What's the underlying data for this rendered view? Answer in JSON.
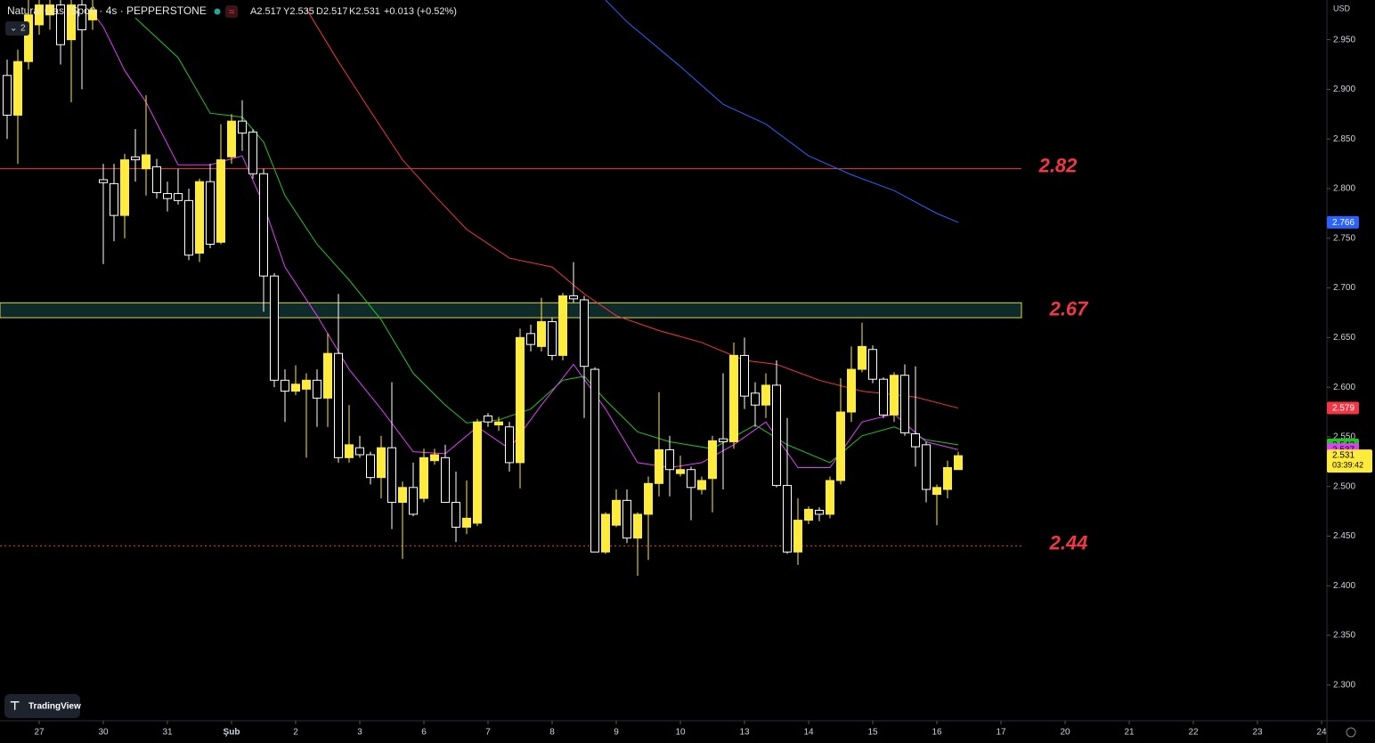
{
  "header": {
    "symbol": "Natural Gas (Spot) · 4s · PEPPERSTONE",
    "open": "A2.517",
    "high": "Y2.535",
    "low": "D2.517",
    "close": "K2.531",
    "change": "+0.013 (+0.52%)",
    "indicators": "2",
    "currency": "USD",
    "countdown": "03:39:42",
    "brand": "TradingView"
  },
  "chart_data": {
    "type": "candlestick",
    "up_color": "#ffeb3b",
    "down_color": "#ffffff",
    "open": [
      2.914,
      2.874,
      2.928,
      2.965,
      2.975,
      2.985,
      2.95,
      2.985,
      2.97,
      2.809,
      2.805,
      2.773,
      2.832,
      2.82,
      2.822,
      2.795,
      2.795,
      2.788,
      2.735,
      2.807,
      2.746,
      2.832,
      2.868,
      2.857,
      2.815,
      2.712,
      2.607,
      2.596,
      2.598,
      2.607,
      2.589,
      2.634,
      2.529,
      2.539,
      2.532,
      2.509,
      2.539,
      2.484,
      2.499,
      2.488,
      2.526,
      2.529,
      2.484,
      2.459,
      2.463,
      2.571,
      2.562,
      2.56,
      2.524,
      2.654,
      2.641,
      2.666,
      2.632,
      2.692,
      2.688,
      2.618,
      2.434,
      2.461,
      2.486,
      2.448,
      2.472,
      2.503,
      2.537,
      2.513,
      2.517,
      2.497,
      2.508,
      2.548,
      2.545,
      2.632,
      2.594,
      2.582,
      2.602,
      2.501,
      2.434,
      2.466,
      2.476,
      2.472,
      2.506,
      2.575,
      2.618,
      2.638,
      2.608,
      2.572,
      2.612,
      2.553,
      2.542,
      2.492,
      2.497,
      2.517
    ],
    "high": [
      2.93,
      2.94,
      2.99,
      2.99,
      2.99,
      2.99,
      2.99,
      2.99,
      2.99,
      2.825,
      2.825,
      2.835,
      2.86,
      2.894,
      2.83,
      2.807,
      2.82,
      2.8,
      2.81,
      2.825,
      2.865,
      2.875,
      2.889,
      2.86,
      2.82,
      2.715,
      2.618,
      2.622,
      2.614,
      2.618,
      2.654,
      2.694,
      2.582,
      2.551,
      2.535,
      2.551,
      2.605,
      2.505,
      2.524,
      2.538,
      2.538,
      2.542,
      2.515,
      2.506,
      2.568,
      2.574,
      2.57,
      2.565,
      2.659,
      2.663,
      2.69,
      2.67,
      2.695,
      2.726,
      2.692,
      2.62,
      2.474,
      2.497,
      2.497,
      2.474,
      2.51,
      2.595,
      2.551,
      2.531,
      2.52,
      2.51,
      2.551,
      2.614,
      2.645,
      2.65,
      2.605,
      2.614,
      2.627,
      2.569,
      2.488,
      2.48,
      2.479,
      2.51,
      2.609,
      2.641,
      2.665,
      2.642,
      2.61,
      2.615,
      2.623,
      2.621,
      2.545,
      2.502,
      2.526,
      2.535
    ],
    "low": [
      2.85,
      2.825,
      2.92,
      2.955,
      2.96,
      2.925,
      2.887,
      2.9,
      2.96,
      2.724,
      2.747,
      2.75,
      2.807,
      2.793,
      2.79,
      2.777,
      2.784,
      2.728,
      2.726,
      2.74,
      2.744,
      2.825,
      2.838,
      2.81,
      2.676,
      2.6,
      2.565,
      2.592,
      2.529,
      2.56,
      2.56,
      2.524,
      2.524,
      2.529,
      2.502,
      2.488,
      2.457,
      2.427,
      2.47,
      2.484,
      2.522,
      2.484,
      2.444,
      2.452,
      2.46,
      2.56,
      2.556,
      2.515,
      2.498,
      2.636,
      2.636,
      2.627,
      2.627,
      2.685,
      2.569,
      2.434,
      2.432,
      2.459,
      2.443,
      2.41,
      2.426,
      2.49,
      2.49,
      2.51,
      2.466,
      2.492,
      2.474,
      2.497,
      2.538,
      2.578,
      2.56,
      2.569,
      2.499,
      2.432,
      2.421,
      2.462,
      2.465,
      2.468,
      2.502,
      2.565,
      2.615,
      2.604,
      2.569,
      2.565,
      2.551,
      2.52,
      2.484,
      2.461,
      2.488,
      2.517
    ],
    "close": [
      2.874,
      2.928,
      2.975,
      2.985,
      2.985,
      2.945,
      2.985,
      2.96,
      2.98,
      2.806,
      2.773,
      2.829,
      2.829,
      2.834,
      2.796,
      2.79,
      2.788,
      2.733,
      2.807,
      2.744,
      2.829,
      2.868,
      2.856,
      2.815,
      2.712,
      2.607,
      2.596,
      2.603,
      2.607,
      2.589,
      2.634,
      2.529,
      2.542,
      2.532,
      2.509,
      2.539,
      2.484,
      2.499,
      2.472,
      2.529,
      2.532,
      2.484,
      2.459,
      2.468,
      2.565,
      2.565,
      2.565,
      2.524,
      2.65,
      2.643,
      2.666,
      2.632,
      2.692,
      2.689,
      2.621,
      2.434,
      2.472,
      2.486,
      2.448,
      2.472,
      2.503,
      2.537,
      2.517,
      2.517,
      2.499,
      2.506,
      2.546,
      2.545,
      2.632,
      2.591,
      2.582,
      2.602,
      2.501,
      2.434,
      2.466,
      2.477,
      2.472,
      2.506,
      2.575,
      2.618,
      2.641,
      2.608,
      2.572,
      2.612,
      2.554,
      2.54,
      2.497,
      2.499,
      2.519,
      2.531
    ],
    "series": [
      {
        "color": "#2962ff",
        "x": [
          56,
          58,
          63,
          67,
          71,
          75,
          79,
          83,
          87,
          89
        ],
        "values": [
          2.99,
          2.968,
          2.923,
          2.885,
          2.865,
          2.833,
          2.814,
          2.798,
          2.775,
          2.766
        ]
      },
      {
        "color": "#f23645",
        "x": [
          28,
          31,
          34,
          37,
          40,
          43,
          47,
          51,
          54,
          57,
          61,
          65,
          69,
          72,
          76,
          80,
          85,
          89
        ],
        "values": [
          2.981,
          2.928,
          2.878,
          2.829,
          2.793,
          2.759,
          2.73,
          2.721,
          2.694,
          2.672,
          2.657,
          2.645,
          2.627,
          2.623,
          2.607,
          2.596,
          2.59,
          2.579
        ]
      },
      {
        "color": "#22c522",
        "x": [
          12,
          16,
          19,
          22,
          24,
          26,
          29,
          32,
          35,
          38,
          41,
          43,
          46,
          49,
          52,
          54,
          56,
          59,
          62,
          66,
          70,
          73,
          77,
          80,
          83,
          86,
          89
        ],
        "values": [
          2.972,
          2.932,
          2.876,
          2.872,
          2.847,
          2.793,
          2.744,
          2.708,
          2.668,
          2.614,
          2.582,
          2.564,
          2.567,
          2.578,
          2.607,
          2.611,
          2.587,
          2.555,
          2.545,
          2.538,
          2.562,
          2.542,
          2.524,
          2.551,
          2.56,
          2.547,
          2.542
        ]
      },
      {
        "color": "#e040fb",
        "x": [
          8,
          9,
          11,
          13,
          16,
          19,
          22,
          24,
          26,
          29,
          32,
          35,
          38,
          41,
          44,
          47,
          50,
          53,
          56,
          59,
          62,
          65,
          68,
          71,
          74,
          77,
          80,
          83,
          86,
          89
        ],
        "values": [
          2.977,
          2.963,
          2.919,
          2.887,
          2.824,
          2.824,
          2.833,
          2.784,
          2.721,
          2.672,
          2.618,
          2.578,
          2.535,
          2.533,
          2.56,
          2.538,
          2.582,
          2.623,
          2.578,
          2.524,
          2.519,
          2.524,
          2.542,
          2.565,
          2.519,
          2.519,
          2.565,
          2.573,
          2.545,
          2.537
        ]
      }
    ],
    "levels": [
      {
        "label": "2.82",
        "value": 2.82,
        "color": "#f23645",
        "style": "solid"
      },
      {
        "label": "2.44",
        "value": 2.44,
        "color": "#f23645",
        "style": "dotted"
      }
    ],
    "zones": [
      {
        "label": "2.67",
        "low": 2.67,
        "high": 2.685,
        "color": "#d8d84a",
        "fill": "#0f2a2a"
      }
    ],
    "label_color": "#f23645",
    "xlim": [
      -0.667,
      123.5
    ],
    "xticks": [
      {
        "value": 3,
        "label": "27"
      },
      {
        "value": 9,
        "label": "30"
      },
      {
        "value": 15,
        "label": "31"
      },
      {
        "value": 21,
        "label": "Şub"
      },
      {
        "value": 27,
        "label": "2"
      },
      {
        "value": 33,
        "label": "3"
      },
      {
        "value": 39,
        "label": "6"
      },
      {
        "value": 45,
        "label": "7"
      },
      {
        "value": 51,
        "label": "8"
      },
      {
        "value": 57,
        "label": "9"
      },
      {
        "value": 63,
        "label": "10"
      },
      {
        "value": 69,
        "label": "13"
      },
      {
        "value": 75,
        "label": "14"
      },
      {
        "value": 81,
        "label": "15"
      },
      {
        "value": 87,
        "label": "16"
      },
      {
        "value": 93,
        "label": "17"
      },
      {
        "value": 99,
        "label": "20"
      },
      {
        "value": 105,
        "label": "21"
      },
      {
        "value": 111,
        "label": "22"
      },
      {
        "value": 117,
        "label": "23"
      },
      {
        "value": 123,
        "label": "24"
      }
    ],
    "ylim": [
      2.264,
      2.99
    ],
    "yticks": [
      {
        "value": 2.3,
        "label": "2.300"
      },
      {
        "value": 2.35,
        "label": "2.350"
      },
      {
        "value": 2.4,
        "label": "2.400"
      },
      {
        "value": 2.45,
        "label": "2.450"
      },
      {
        "value": 2.5,
        "label": "2.500"
      },
      {
        "value": 2.55,
        "label": "2.550"
      },
      {
        "value": 2.6,
        "label": "2.600"
      },
      {
        "value": 2.65,
        "label": "2.650"
      },
      {
        "value": 2.7,
        "label": "2.700"
      },
      {
        "value": 2.75,
        "label": "2.750"
      },
      {
        "value": 2.8,
        "label": "2.800"
      },
      {
        "value": 2.85,
        "label": "2.850"
      },
      {
        "value": 2.9,
        "label": "2.900"
      },
      {
        "value": 2.95,
        "label": "2.950"
      }
    ]
  }
}
